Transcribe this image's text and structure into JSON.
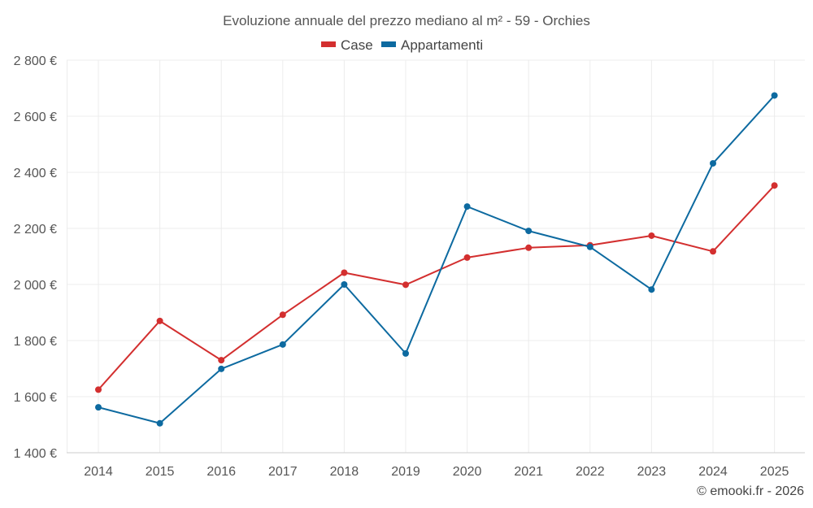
{
  "chart_data": {
    "type": "line",
    "title": "Evoluzione annuale del prezzo mediano al m² - 59 - Orchies",
    "categories": [
      "2014",
      "2015",
      "2016",
      "2017",
      "2018",
      "2019",
      "2020",
      "2021",
      "2022",
      "2023",
      "2024",
      "2025"
    ],
    "series": [
      {
        "name": "Case",
        "color": "#d32f2f",
        "values": [
          1625,
          1870,
          1730,
          1892,
          2042,
          1999,
          2096,
          2131,
          2140,
          2174,
          2118,
          2353
        ]
      },
      {
        "name": "Appartamenti",
        "color": "#0d6aa0",
        "values": [
          1562,
          1505,
          1699,
          1786,
          2000,
          1754,
          2278,
          2191,
          2134,
          1982,
          2432,
          2674
        ]
      }
    ],
    "y_ticks": [
      1400,
      1600,
      1800,
      2000,
      2200,
      2400,
      2600,
      2800
    ],
    "y_tick_labels": [
      "1 400 €",
      "1 600 €",
      "1 800 €",
      "2 000 €",
      "2 200 €",
      "2 400 €",
      "2 600 €",
      "2 800 €"
    ],
    "ylim": [
      1400,
      2800
    ],
    "xlabel": "",
    "ylabel": "",
    "grid": true,
    "legend_position": "top-center"
  },
  "credit": "© emooki.fr - 2026"
}
